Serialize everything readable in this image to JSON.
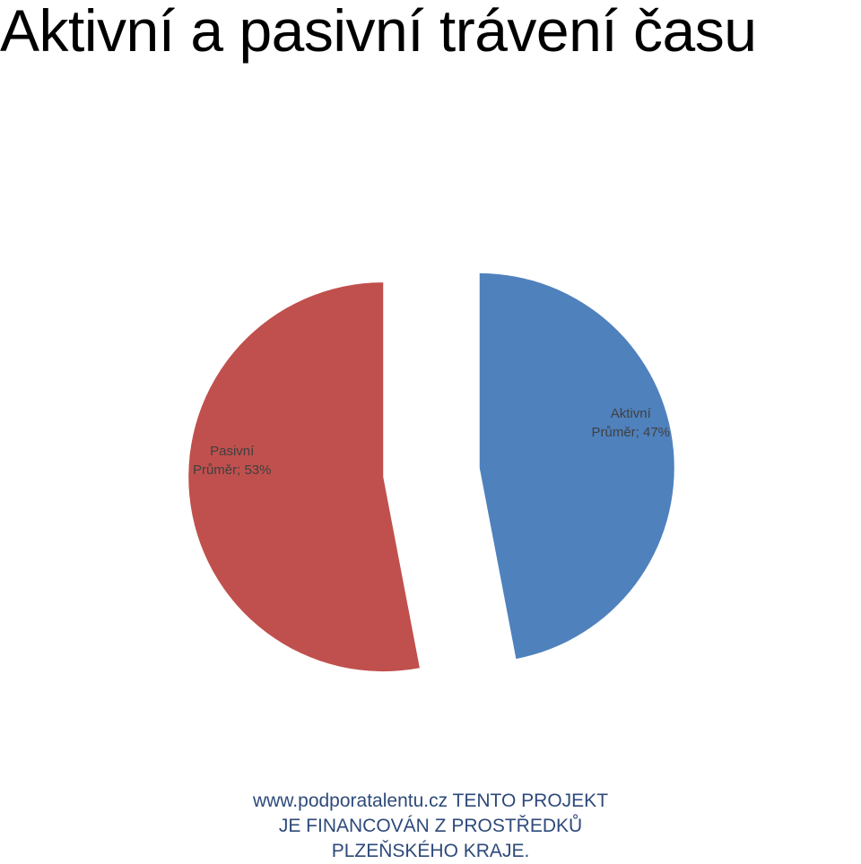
{
  "slide": {
    "title": "Aktivní a pasivní trávení času"
  },
  "chart_data": {
    "type": "pie",
    "exploded": true,
    "categories": [
      "Aktivní",
      "Pasivní"
    ],
    "values": [
      47,
      53
    ],
    "value_labels": [
      "Průměr; 47%",
      "Průměr; 53%"
    ],
    "colors": [
      "#4f81bd",
      "#c0504d"
    ],
    "legend": "none"
  },
  "footer": {
    "text": "www.podporatalentu.cz  TENTO PROJEKT JE FINANCOVÁN Z PROSTŘEDKŮ PLZEŇSKÉHO KRAJE."
  }
}
